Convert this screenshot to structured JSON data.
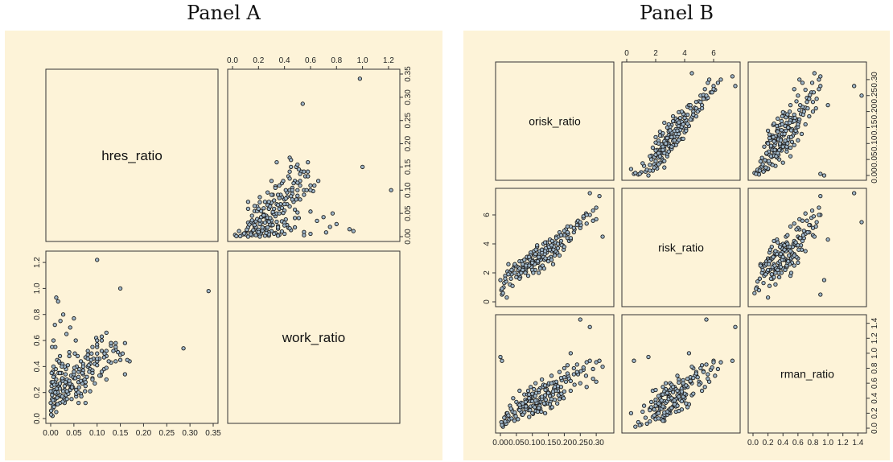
{
  "panel_titles": {
    "a": "Panel A",
    "b": "Panel B"
  },
  "colors": {
    "background": "#fdf3d8",
    "point_fill": "#9fb6c8",
    "point_stroke": "#1d1d1d"
  },
  "chart_data": [
    {
      "type": "scatter",
      "title": "Panel A",
      "variables": [
        "hres_ratio",
        "work_ratio"
      ],
      "ranges": {
        "hres_ratio": [
          0,
          0.35
        ],
        "work_ratio": [
          0,
          1.25
        ]
      },
      "ticks": {
        "hres_ratio": [
          0.0,
          0.05,
          0.1,
          0.15,
          0.2,
          0.25,
          0.3,
          0.35
        ],
        "work_ratio": [
          0.0,
          0.2,
          0.4,
          0.6,
          0.8,
          1.0,
          1.2
        ]
      },
      "tick_labels": {
        "hres_ratio": [
          "0.00",
          "0.05",
          "0.10",
          "0.15",
          "0.20",
          "0.25",
          "0.30",
          "0.35"
        ],
        "work_ratio": [
          "0.0",
          "0.2",
          "0.4",
          "0.6",
          "0.8",
          "1.0",
          "1.2"
        ]
      },
      "points": {
        "hres_ratio": [
          0.0,
          0.003,
          0.005,
          0.007,
          0.01,
          0.012,
          0.015,
          0.002,
          0.004,
          0.006,
          0.008,
          0.011,
          0.014,
          0.018,
          0.02,
          0.022,
          0.025,
          0.028,
          0.03,
          0.033,
          0.036,
          0.04,
          0.044,
          0.048,
          0.052,
          0.056,
          0.06,
          0.065,
          0.07,
          0.075,
          0.08,
          0.085,
          0.09,
          0.095,
          0.1,
          0.105,
          0.11,
          0.12,
          0.13,
          0.14,
          0.15,
          0.16,
          0.17,
          0.005,
          0.008,
          0.012,
          0.016,
          0.02,
          0.024,
          0.028,
          0.032,
          0.036,
          0.04,
          0.045,
          0.05,
          0.055,
          0.06,
          0.065,
          0.07,
          0.075,
          0.08,
          0.09,
          0.1,
          0.11,
          0.12,
          0.001,
          0.004,
          0.009,
          0.013,
          0.017,
          0.021,
          0.026,
          0.031,
          0.037,
          0.043,
          0.049,
          0.055,
          0.062,
          0.068,
          0.074,
          0.083,
          0.092,
          0.1,
          0.108,
          0.116,
          0.002,
          0.006,
          0.011,
          0.019,
          0.027,
          0.035,
          0.045,
          0.058,
          0.07,
          0.085,
          0.1,
          0.115,
          0.13,
          0.145,
          0.003,
          0.007,
          0.013,
          0.023,
          0.033,
          0.041,
          0.051,
          0.061,
          0.073,
          0.087,
          0.098,
          0.01,
          0.02,
          0.03,
          0.04,
          0.05,
          0.06,
          0.07,
          0.08,
          0.09,
          0.1,
          0.11,
          0.12,
          0.13,
          0.14,
          0.15,
          0.004,
          0.012,
          0.018,
          0.024,
          0.03,
          0.042,
          0.054,
          0.066,
          0.078,
          0.088,
          0.0,
          0.005,
          0.015,
          0.025,
          0.035,
          0.045,
          0.055,
          0.065,
          0.075,
          0.085,
          0.095,
          0.105,
          0.115,
          0.125,
          0.135,
          0.155,
          0.165,
          0.002,
          0.008,
          0.014,
          0.02,
          0.026,
          0.032,
          0.038,
          0.046,
          0.053,
          0.06,
          0.068,
          0.075,
          0.082,
          0.09,
          0.1,
          0.12,
          0.14,
          0.16,
          0.005,
          0.01,
          0.015,
          0.02,
          0.025,
          0.03,
          0.035,
          0.04,
          0.05,
          0.06,
          0.07,
          0.08,
          0.09,
          0.1,
          0.12,
          0.14,
          0.001,
          0.003,
          0.006,
          0.009,
          0.012,
          0.016,
          0.021,
          0.027,
          0.034,
          0.042,
          0.05,
          0.286,
          0.34,
          0.15,
          0.1,
          0.02,
          0.11,
          0.13,
          0.06,
          0.085
        ],
        "work_ratio": [
          0.12,
          0.18,
          0.1,
          0.22,
          0.15,
          0.3,
          0.26,
          0.28,
          0.36,
          0.4,
          0.33,
          0.2,
          0.45,
          0.25,
          0.35,
          0.17,
          0.42,
          0.3,
          0.22,
          0.38,
          0.27,
          0.48,
          0.33,
          0.24,
          0.5,
          0.4,
          0.36,
          0.44,
          0.29,
          0.47,
          0.52,
          0.38,
          0.55,
          0.42,
          0.5,
          0.46,
          0.6,
          0.48,
          0.56,
          0.53,
          0.45,
          0.58,
          0.44,
          0.08,
          0.14,
          0.19,
          0.24,
          0.12,
          0.3,
          0.16,
          0.34,
          0.2,
          0.26,
          0.15,
          0.31,
          0.22,
          0.28,
          0.19,
          0.34,
          0.25,
          0.4,
          0.31,
          0.44,
          0.36,
          0.52,
          0.06,
          0.21,
          0.28,
          0.11,
          0.35,
          0.18,
          0.29,
          0.14,
          0.41,
          0.23,
          0.32,
          0.17,
          0.38,
          0.27,
          0.21,
          0.36,
          0.46,
          0.41,
          0.33,
          0.5,
          0.25,
          0.32,
          0.38,
          0.43,
          0.21,
          0.3,
          0.26,
          0.48,
          0.37,
          0.42,
          0.55,
          0.47,
          0.58,
          0.51,
          0.15,
          0.09,
          0.23,
          0.35,
          0.18,
          0.27,
          0.39,
          0.24,
          0.3,
          0.45,
          0.62,
          0.55,
          0.48,
          0.4,
          0.51,
          0.34,
          0.28,
          0.42,
          0.49,
          0.37,
          0.57,
          0.63,
          0.66,
          0.43,
          0.55,
          0.49,
          0.02,
          0.05,
          0.44,
          0.4,
          0.12,
          0.22,
          0.6,
          0.17,
          0.32,
          0.5,
          0.21,
          0.28,
          0.2,
          0.31,
          0.15,
          0.24,
          0.19,
          0.29,
          0.12,
          0.21,
          0.27,
          0.33,
          0.38,
          0.44,
          0.52,
          0.5,
          0.45,
          0.35,
          0.26,
          0.16,
          0.23,
          0.13,
          0.28,
          0.19,
          0.24,
          0.31,
          0.2,
          0.35,
          0.28,
          0.41,
          0.3,
          0.46,
          0.39,
          0.58,
          0.34,
          0.14,
          0.2,
          0.11,
          0.27,
          0.17,
          0.25,
          0.21,
          0.29,
          0.36,
          0.32,
          0.4,
          0.46,
          0.35,
          0.6,
          0.3,
          0.44,
          0.03,
          0.55,
          0.6,
          0.72,
          0.93,
          0.9,
          0.75,
          0.8,
          0.65,
          0.7,
          0.77,
          0.54,
          0.98,
          1.0,
          1.22,
          0.35,
          0.52,
          0.58,
          0.12
        ]
      }
    },
    {
      "type": "scatter",
      "title": "Panel B",
      "variables": [
        "orisk_ratio",
        "risk_ratio",
        "rman_ratio"
      ],
      "ranges": {
        "orisk_ratio": [
          0,
          0.34
        ],
        "risk_ratio": [
          0,
          7.5
        ],
        "rman_ratio": [
          0,
          1.45
        ]
      },
      "ticks": {
        "orisk_ratio": [
          0.0,
          0.05,
          0.1,
          0.15,
          0.2,
          0.25,
          0.3
        ],
        "risk_ratio": [
          0,
          2,
          4,
          6
        ],
        "rman_ratio": [
          0.0,
          0.2,
          0.4,
          0.6,
          0.8,
          1.0,
          1.2,
          1.4
        ]
      },
      "tick_labels": {
        "orisk_ratio": [
          "0.00",
          "0.05",
          "0.10",
          "0.15",
          "0.20",
          "0.25",
          "0.30"
        ],
        "risk_ratio": [
          "0",
          "2",
          "4",
          "6"
        ],
        "rman_ratio": [
          "0.0",
          "0.2",
          "0.4",
          "0.6",
          "0.8",
          "1.0",
          "1.2",
          "1.4"
        ]
      },
      "points": {
        "orisk_ratio": [
          0.0,
          0.005,
          0.01,
          0.015,
          0.02,
          0.025,
          0.03,
          0.035,
          0.04,
          0.045,
          0.05,
          0.055,
          0.06,
          0.065,
          0.07,
          0.075,
          0.08,
          0.085,
          0.09,
          0.095,
          0.1,
          0.105,
          0.11,
          0.115,
          0.12,
          0.125,
          0.13,
          0.135,
          0.14,
          0.145,
          0.15,
          0.155,
          0.16,
          0.165,
          0.17,
          0.175,
          0.18,
          0.185,
          0.19,
          0.195,
          0.2,
          0.205,
          0.21,
          0.22,
          0.23,
          0.24,
          0.25,
          0.26,
          0.27,
          0.28,
          0.29,
          0.3,
          0.31,
          0.32,
          0.003,
          0.012,
          0.022,
          0.033,
          0.044,
          0.056,
          0.068,
          0.078,
          0.088,
          0.098,
          0.108,
          0.118,
          0.128,
          0.138,
          0.148,
          0.158,
          0.168,
          0.178,
          0.188,
          0.198,
          0.058,
          0.072,
          0.082,
          0.092,
          0.102,
          0.112,
          0.122,
          0.132,
          0.142,
          0.152,
          0.162,
          0.172,
          0.182,
          0.192,
          0.212,
          0.232,
          0.252,
          0.065,
          0.075,
          0.085,
          0.095,
          0.105,
          0.115,
          0.125,
          0.135,
          0.145,
          0.155,
          0.165,
          0.175,
          0.185,
          0.008,
          0.018,
          0.028,
          0.038,
          0.048,
          0.062,
          0.079,
          0.093,
          0.109,
          0.123,
          0.141,
          0.157,
          0.173,
          0.191,
          0.215,
          0.243,
          0.268,
          0.07,
          0.083,
          0.097,
          0.111,
          0.126,
          0.139,
          0.087,
          0.1,
          0.113,
          0.12,
          0.13,
          0.09,
          0.103,
          0.117,
          0.094,
          0.107,
          0.124,
          0.137,
          0.152,
          0.166,
          0.18,
          0.2,
          0.21,
          0.22,
          0.005,
          0.015,
          0.025,
          0.035,
          0.045,
          0.06,
          0.08,
          0.1,
          0.12,
          0.14,
          0.16,
          0.18,
          0.2,
          0.22,
          0.24,
          0.26,
          0.28,
          0.3,
          0.06,
          0.07,
          0.08,
          0.09,
          0.1,
          0.11,
          0.12,
          0.13,
          0.14,
          0.15,
          0.16,
          0.17,
          0.19,
          0.21,
          0.23,
          0.25,
          0.27,
          0.29
        ],
        "risk_ratio": [
          1.5,
          0.5,
          1.0,
          1.8,
          0.3,
          2.6,
          1.2,
          1.9,
          2.3,
          2.0,
          1.7,
          2.4,
          2.8,
          2.2,
          2.5,
          2.9,
          2.1,
          3.1,
          2.6,
          3.3,
          2.9,
          3.5,
          2.7,
          3.8,
          3.2,
          2.4,
          3.6,
          4.0,
          3.0,
          3.4,
          3.9,
          4.3,
          3.5,
          4.1,
          3.3,
          4.5,
          3.7,
          4.8,
          4.2,
          3.9,
          4.6,
          5.0,
          4.4,
          5.2,
          4.8,
          5.5,
          5.1,
          5.8,
          5.4,
          6.0,
          5.6,
          6.5,
          7.3,
          4.5,
          0.8,
          1.3,
          2.1,
          1.6,
          2.5,
          2.2,
          2.8,
          2.0,
          3.0,
          2.4,
          3.2,
          2.7,
          3.4,
          2.9,
          3.6,
          3.1,
          3.8,
          3.4,
          4.0,
          3.6,
          1.9,
          2.3,
          2.6,
          3.0,
          2.1,
          2.8,
          3.3,
          2.5,
          3.7,
          3.0,
          4.2,
          3.5,
          4.5,
          3.9,
          4.7,
          5.0,
          5.3,
          2.0,
          2.9,
          2.4,
          3.4,
          2.7,
          3.9,
          2.3,
          3.1,
          4.1,
          3.6,
          2.6,
          4.4,
          3.2,
          0.6,
          1.4,
          2.0,
          1.1,
          2.5,
          1.7,
          2.3,
          2.9,
          2.2,
          3.5,
          3.0,
          3.8,
          4.1,
          4.6,
          4.2,
          5.6,
          6.1,
          2.6,
          3.1,
          2.4,
          3.6,
          2.9,
          3.3,
          1.8,
          2.2,
          2.7,
          3.0,
          3.4,
          2.5,
          2.0,
          2.8,
          3.2,
          2.6,
          3.1,
          2.3,
          3.8,
          3.6,
          4.0,
          4.9,
          5.2,
          4.3,
          0.9,
          1.6,
          1.9,
          2.2,
          2.6,
          2.3,
          2.4,
          2.8,
          3.1,
          3.5,
          2.9,
          4.0,
          3.8,
          4.4,
          5.3,
          5.9,
          7.5,
          5.7,
          1.6,
          2.2,
          2.5,
          3.1,
          2.7,
          3.3,
          2.0,
          3.6,
          4.1,
          2.8,
          3.9,
          3.2,
          4.6,
          4.8,
          5.1,
          5.5,
          6.0,
          6.3
        ],
        "rman_ratio": [
          0.95,
          0.9,
          0.05,
          0.15,
          0.2,
          0.1,
          0.3,
          0.25,
          0.4,
          0.18,
          0.35,
          0.12,
          0.5,
          0.22,
          0.28,
          0.45,
          0.3,
          0.38,
          0.15,
          0.55,
          0.42,
          0.3,
          0.6,
          0.25,
          0.48,
          0.35,
          0.65,
          0.4,
          0.2,
          0.52,
          0.58,
          0.32,
          0.7,
          0.45,
          0.38,
          0.6,
          0.5,
          0.75,
          0.55,
          0.42,
          0.8,
          0.62,
          0.68,
          0.5,
          0.72,
          0.85,
          0.6,
          0.78,
          0.55,
          0.9,
          0.66,
          0.88,
          0.9,
          0.82,
          0.08,
          0.14,
          0.2,
          0.26,
          0.1,
          0.32,
          0.18,
          0.38,
          0.24,
          0.44,
          0.29,
          0.35,
          0.22,
          0.41,
          0.48,
          0.27,
          0.53,
          0.33,
          0.46,
          0.4,
          0.25,
          0.3,
          0.36,
          0.42,
          0.19,
          0.47,
          0.31,
          0.55,
          0.38,
          0.6,
          0.28,
          0.5,
          0.44,
          0.64,
          0.7,
          0.58,
          0.76,
          0.34,
          0.21,
          0.45,
          0.29,
          0.52,
          0.37,
          0.26,
          0.58,
          0.33,
          0.43,
          0.49,
          0.62,
          0.39,
          0.02,
          0.06,
          0.12,
          0.22,
          0.16,
          0.28,
          0.35,
          0.24,
          0.43,
          0.3,
          0.51,
          0.36,
          0.57,
          0.46,
          0.66,
          0.72,
          0.7,
          0.18,
          0.27,
          0.37,
          0.23,
          0.41,
          0.32,
          0.5,
          0.2,
          0.34,
          0.26,
          0.39,
          0.45,
          0.3,
          0.22,
          0.36,
          0.28,
          0.53,
          0.33,
          0.47,
          0.61,
          0.54,
          0.68,
          0.84,
          1.0,
          0.04,
          0.09,
          0.17,
          0.13,
          0.21,
          0.31,
          0.26,
          0.36,
          0.27,
          0.44,
          0.39,
          0.56,
          0.49,
          0.63,
          0.75,
          0.81,
          1.35,
          0.62,
          0.24,
          0.33,
          0.29,
          0.4,
          0.46,
          0.37,
          0.51,
          0.42,
          0.57,
          0.47,
          0.6,
          0.55,
          0.67,
          0.73,
          0.8,
          1.45,
          0.88,
          0.79
        ]
      }
    }
  ]
}
